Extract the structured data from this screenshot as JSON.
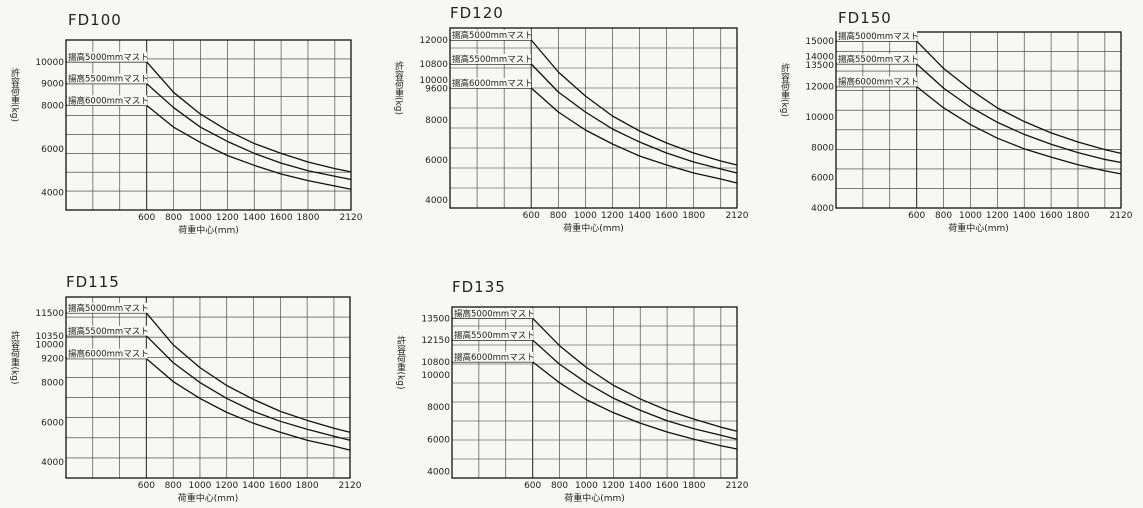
{
  "chart_data": [
    {
      "type": "line",
      "title": "FD100",
      "xlabel": "荷重中心(mm)",
      "ylabel": "許容荷重(kg)",
      "x_ticks": [
        "600",
        "800",
        "1000",
        "1200",
        "1400",
        "1600",
        "1800",
        "2120"
      ],
      "y_ticks": [
        "10000",
        "9000",
        "8000",
        "6000",
        "4000"
      ],
      "xlim": [
        0,
        2120
      ],
      "ylim": [
        3200,
        11000
      ],
      "series": [
        {
          "name": "揚高5000mmマスト",
          "x": [
            0,
            600,
            800,
            1000,
            1200,
            1400,
            1600,
            1800,
            2000,
            2120
          ],
          "y": [
            10000,
            10000,
            8600,
            7600,
            6850,
            6250,
            5800,
            5400,
            5100,
            4950
          ]
        },
        {
          "name": "揚高5500mmマスト",
          "x": [
            0,
            600,
            800,
            1000,
            1200,
            1400,
            1600,
            1800,
            2000,
            2120
          ],
          "y": [
            9000,
            9000,
            7900,
            7000,
            6350,
            5800,
            5350,
            5000,
            4750,
            4600
          ]
        },
        {
          "name": "揚高6000mmマスト",
          "x": [
            0,
            600,
            800,
            1000,
            1200,
            1400,
            1600,
            1800,
            2000,
            2120
          ],
          "y": [
            8000,
            8000,
            7000,
            6300,
            5700,
            5250,
            4850,
            4550,
            4300,
            4150
          ]
        }
      ]
    },
    {
      "type": "line",
      "title": "FD120",
      "xlabel": "荷重中心(mm)",
      "ylabel": "許容荷重(kg)",
      "x_ticks": [
        "600",
        "800",
        "1000",
        "1200",
        "1400",
        "1600",
        "1800",
        "2120"
      ],
      "y_ticks": [
        "12000",
        "10800",
        "10000",
        "9600",
        "8000",
        "6000",
        "4000"
      ],
      "xlim": [
        0,
        2120
      ],
      "ylim": [
        3600,
        12600
      ],
      "series": [
        {
          "name": "揚高5000mmマスト",
          "x": [
            0,
            600,
            800,
            1000,
            1200,
            1400,
            1600,
            1800,
            2000,
            2120
          ],
          "y": [
            12000,
            12000,
            10400,
            9200,
            8200,
            7450,
            6850,
            6350,
            5950,
            5750
          ]
        },
        {
          "name": "揚高5500mmマスト",
          "x": [
            0,
            600,
            800,
            1000,
            1200,
            1400,
            1600,
            1800,
            2000,
            2120
          ],
          "y": [
            10800,
            10800,
            9400,
            8400,
            7550,
            6900,
            6350,
            5900,
            5550,
            5350
          ]
        },
        {
          "name": "揚高6000mmマスト",
          "x": [
            0,
            600,
            800,
            1000,
            1200,
            1400,
            1600,
            1800,
            2000,
            2120
          ],
          "y": [
            9600,
            9600,
            8400,
            7500,
            6800,
            6200,
            5750,
            5350,
            5050,
            4850
          ]
        }
      ]
    },
    {
      "type": "line",
      "title": "FD150",
      "xlabel": "荷重中心(mm)",
      "ylabel": "許容荷重(kg)",
      "x_ticks": [
        "600",
        "800",
        "1000",
        "1200",
        "1400",
        "1600",
        "1800",
        "2120"
      ],
      "y_ticks": [
        "15000",
        "14000",
        "13500",
        "12000",
        "10000",
        "8000",
        "6000",
        "4000"
      ],
      "xlim": [
        0,
        2120
      ],
      "ylim": [
        4000,
        15600
      ],
      "series": [
        {
          "name": "揚高5000mmマスト",
          "x": [
            0,
            600,
            800,
            1000,
            1200,
            1400,
            1600,
            1800,
            2000,
            2120
          ],
          "y": [
            15000,
            15000,
            13200,
            11800,
            10600,
            9700,
            8950,
            8350,
            7850,
            7600
          ]
        },
        {
          "name": "揚高5500mmマスト",
          "x": [
            0,
            600,
            800,
            1000,
            1200,
            1400,
            1600,
            1800,
            2000,
            2120
          ],
          "y": [
            13500,
            13500,
            11900,
            10650,
            9650,
            8850,
            8200,
            7650,
            7200,
            7000
          ]
        },
        {
          "name": "揚高6000mmマスト",
          "x": [
            0,
            600,
            800,
            1000,
            1200,
            1400,
            1600,
            1800,
            2000,
            2120
          ],
          "y": [
            12000,
            12000,
            10600,
            9500,
            8600,
            7900,
            7350,
            6850,
            6450,
            6250
          ]
        }
      ]
    },
    {
      "type": "line",
      "title": "FD115",
      "xlabel": "荷重中心(mm)",
      "ylabel": "許容荷重(kg)",
      "x_ticks": [
        "600",
        "800",
        "1000",
        "1200",
        "1400",
        "1600",
        "1800",
        "2120"
      ],
      "y_ticks": [
        "11500",
        "10350",
        "10000",
        "9200",
        "8000",
        "6000",
        "4000"
      ],
      "xlim": [
        0,
        2120
      ],
      "ylim": [
        3200,
        12300
      ],
      "series": [
        {
          "name": "揚高5000mmマスト",
          "x": [
            0,
            600,
            800,
            1000,
            1200,
            1400,
            1600,
            1800,
            2000,
            2120
          ],
          "y": [
            11500,
            11500,
            9900,
            8750,
            7850,
            7150,
            6550,
            6100,
            5700,
            5500
          ]
        },
        {
          "name": "揚高5500mmマスト",
          "x": [
            0,
            600,
            800,
            1000,
            1200,
            1400,
            1600,
            1800,
            2000,
            2120
          ],
          "y": [
            10350,
            10350,
            9000,
            8000,
            7200,
            6550,
            6050,
            5650,
            5300,
            5100
          ]
        },
        {
          "name": "揚高6000mmマスト",
          "x": [
            0,
            600,
            800,
            1000,
            1200,
            1400,
            1600,
            1800,
            2000,
            2120
          ],
          "y": [
            9200,
            9200,
            8050,
            7200,
            6500,
            5950,
            5500,
            5100,
            4800,
            4600
          ]
        }
      ]
    },
    {
      "type": "line",
      "title": "FD135",
      "xlabel": "荷重中心(mm)",
      "ylabel": "許容荷重(kg)",
      "x_ticks": [
        "600",
        "800",
        "1000",
        "1200",
        "1400",
        "1600",
        "1800",
        "2120"
      ],
      "y_ticks": [
        "13500",
        "12150",
        "10800",
        "10000",
        "8000",
        "6000",
        "4000"
      ],
      "xlim": [
        0,
        2120
      ],
      "ylim": [
        3600,
        14200
      ],
      "series": [
        {
          "name": "揚高5000mmマスト",
          "x": [
            0,
            600,
            800,
            1000,
            1200,
            1400,
            1600,
            1800,
            2000,
            2120
          ],
          "y": [
            13500,
            13500,
            11800,
            10450,
            9350,
            8500,
            7800,
            7250,
            6750,
            6500
          ]
        },
        {
          "name": "揚高5500mmマスト",
          "x": [
            0,
            600,
            800,
            1000,
            1200,
            1400,
            1600,
            1800,
            2000,
            2120
          ],
          "y": [
            12150,
            12150,
            10650,
            9500,
            8550,
            7800,
            7150,
            6650,
            6250,
            6000
          ]
        },
        {
          "name": "揚高6000mmマスト",
          "x": [
            0,
            600,
            800,
            1000,
            1200,
            1400,
            1600,
            1800,
            2000,
            2120
          ],
          "y": [
            10800,
            10800,
            9500,
            8450,
            7650,
            7000,
            6450,
            6000,
            5600,
            5400
          ]
        }
      ]
    }
  ]
}
